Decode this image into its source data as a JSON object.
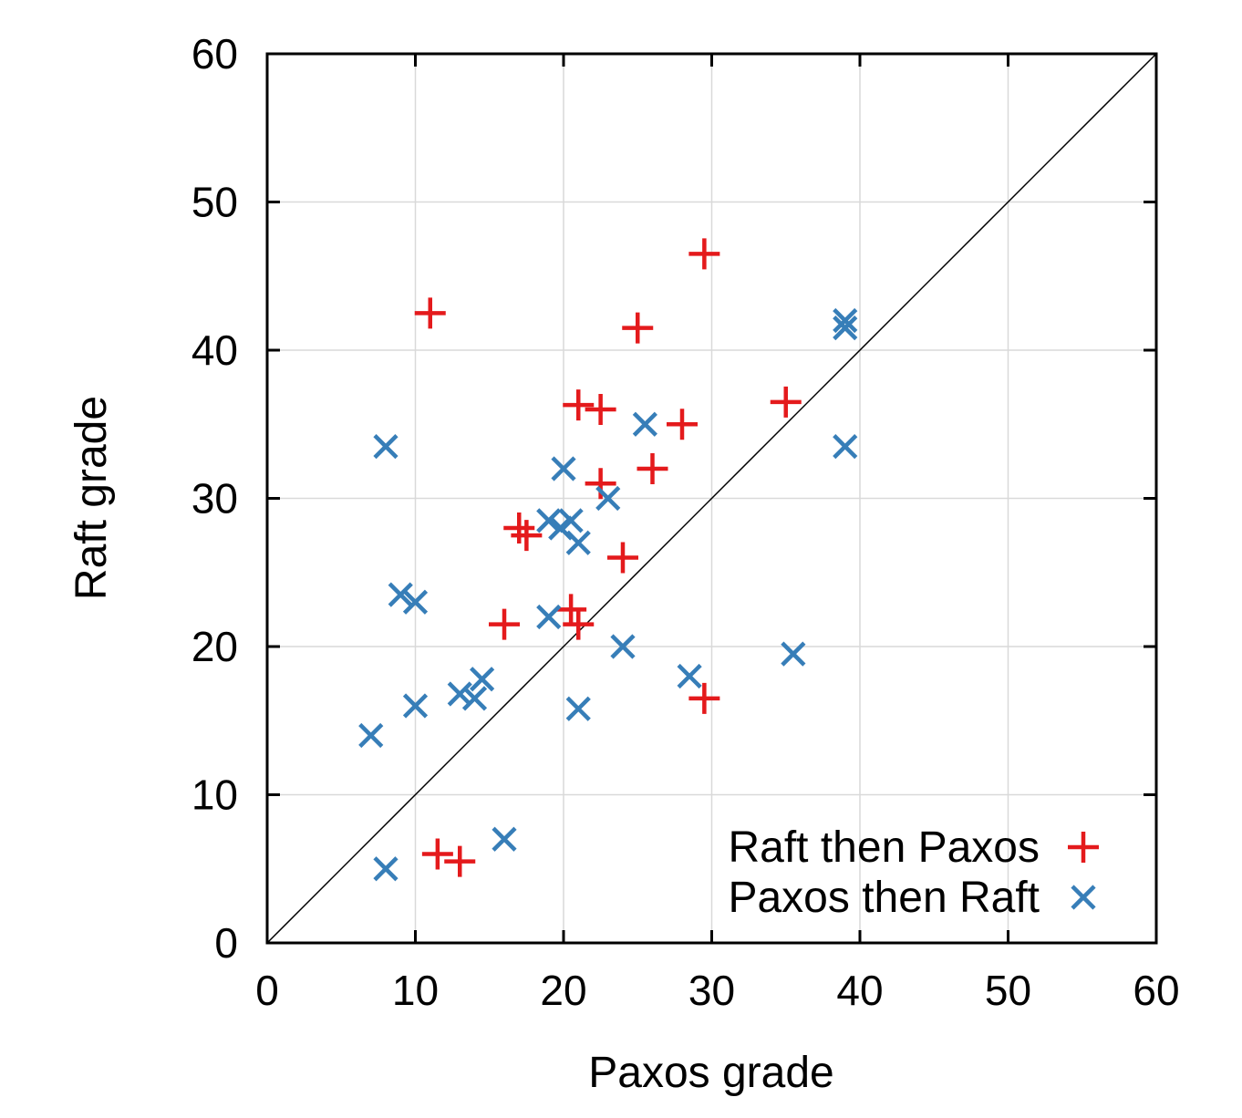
{
  "chart_data": {
    "type": "scatter",
    "title": "",
    "xlabel": "Paxos grade",
    "ylabel": "Raft grade",
    "xlim": [
      0,
      60
    ],
    "ylim": [
      0,
      60
    ],
    "xticks": [
      0,
      10,
      20,
      30,
      40,
      50,
      60
    ],
    "yticks": [
      0,
      10,
      20,
      30,
      40,
      50,
      60
    ],
    "grid": true,
    "diagonal_reference_line": true,
    "legend_position": "bottom-right",
    "series": [
      {
        "name": "Raft then Paxos",
        "marker": "plus",
        "color": "#e41a1c",
        "points": [
          [
            11,
            42.5
          ],
          [
            29.5,
            46.5
          ],
          [
            25,
            41.5
          ],
          [
            21,
            36.3
          ],
          [
            22.5,
            36
          ],
          [
            28,
            35
          ],
          [
            35,
            36.5
          ],
          [
            26,
            32
          ],
          [
            22.5,
            31
          ],
          [
            17,
            28
          ],
          [
            17.5,
            27.5
          ],
          [
            24,
            26
          ],
          [
            20.5,
            22.5
          ],
          [
            21,
            21.5
          ],
          [
            16,
            21.5
          ],
          [
            29.5,
            16.5
          ],
          [
            11.5,
            6
          ],
          [
            13,
            5.5
          ]
        ]
      },
      {
        "name": "Paxos then Raft",
        "marker": "x",
        "color": "#377eb8",
        "points": [
          [
            39,
            42
          ],
          [
            39,
            41.5
          ],
          [
            39,
            33.5
          ],
          [
            8,
            33.5
          ],
          [
            25.5,
            35
          ],
          [
            20,
            32
          ],
          [
            23,
            30
          ],
          [
            19,
            28.5
          ],
          [
            19.8,
            28
          ],
          [
            20.5,
            28.5
          ],
          [
            21,
            27
          ],
          [
            9,
            23.5
          ],
          [
            10,
            23
          ],
          [
            19,
            22
          ],
          [
            24,
            20
          ],
          [
            35.5,
            19.5
          ],
          [
            28.5,
            18
          ],
          [
            14.5,
            17.8
          ],
          [
            13,
            16.8
          ],
          [
            14,
            16.5
          ],
          [
            10,
            16
          ],
          [
            21,
            15.8
          ],
          [
            7,
            14
          ],
          [
            16,
            7
          ],
          [
            8,
            5
          ]
        ]
      }
    ]
  }
}
